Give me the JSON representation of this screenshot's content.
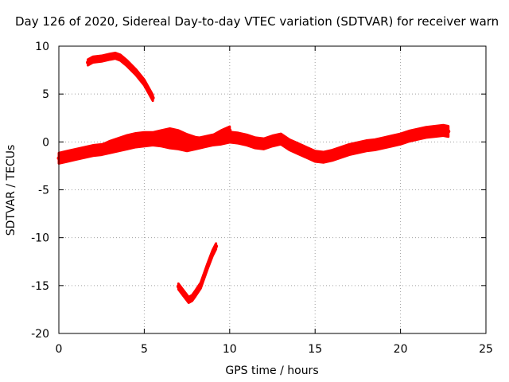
{
  "chart_data": {
    "type": "scatter",
    "title": "Day 126 of 2020, Sidereal Day-to-day VTEC variation (SDTVAR) for receiver warn",
    "xlabel": "GPS time / hours",
    "ylabel": "SDTVAR / TECUs",
    "xlim": [
      0,
      25
    ],
    "ylim": [
      -20,
      10
    ],
    "xticks": [
      0,
      5,
      10,
      15,
      20,
      25
    ],
    "yticks": [
      -20,
      -15,
      -10,
      -5,
      0,
      5,
      10
    ],
    "grid": true,
    "series_color": "#ff0000",
    "series": [
      {
        "name": "main band",
        "band_halfwidth": 0.55,
        "x": [
          0.0,
          0.5,
          1.0,
          1.5,
          2.0,
          2.5,
          3.0,
          3.5,
          4.0,
          4.5,
          5.0,
          5.5,
          6.0,
          6.5,
          7.0,
          7.5,
          8.0,
          8.5,
          9.0,
          9.5,
          10.0,
          10.5,
          11.0,
          11.5,
          12.0,
          12.5,
          13.0,
          13.5,
          14.0,
          14.5,
          15.0,
          15.5,
          16.0,
          16.5,
          17.0,
          17.5,
          18.0,
          18.5,
          19.0,
          19.5,
          20.0,
          20.5,
          21.0,
          21.5,
          22.0,
          22.5,
          22.8
        ],
        "y": [
          -1.7,
          -1.5,
          -1.3,
          -1.1,
          -0.9,
          -0.8,
          -0.6,
          -0.4,
          -0.2,
          0.0,
          0.1,
          0.2,
          0.1,
          -0.1,
          -0.2,
          -0.4,
          -0.2,
          0.0,
          0.2,
          0.3,
          0.5,
          0.4,
          0.2,
          -0.1,
          -0.2,
          0.1,
          0.3,
          -0.3,
          -0.7,
          -1.1,
          -1.5,
          -1.6,
          -1.4,
          -1.1,
          -0.8,
          -0.6,
          -0.4,
          -0.3,
          -0.1,
          0.1,
          0.3,
          0.6,
          0.8,
          1.0,
          1.1,
          1.2,
          1.1
        ]
      },
      {
        "name": "secondary band",
        "band_halfwidth": 0.4,
        "x": [
          2.5,
          3.0,
          3.5,
          4.0,
          4.5,
          5.0,
          5.5,
          6.0,
          6.5,
          7.0,
          7.5,
          8.0,
          8.5,
          9.0,
          9.5,
          10.0
        ],
        "y": [
          -0.7,
          -0.3,
          0.0,
          0.3,
          0.5,
          0.6,
          0.6,
          0.8,
          1.0,
          0.8,
          0.4,
          0.1,
          0.0,
          0.3,
          0.8,
          1.2
        ]
      },
      {
        "name": "upper arc",
        "band_halfwidth": 0.3,
        "x": [
          1.7,
          2.0,
          2.5,
          3.0,
          3.3,
          3.6,
          4.0,
          4.5,
          5.0,
          5.5
        ],
        "y": [
          8.3,
          8.6,
          8.7,
          8.9,
          9.0,
          8.8,
          8.2,
          7.3,
          6.2,
          4.6
        ]
      },
      {
        "name": "lower arc",
        "band_halfwidth": 0.3,
        "x": [
          7.0,
          7.3,
          7.6,
          7.8,
          8.0,
          8.3,
          8.7,
          9.0,
          9.2
        ],
        "y": [
          -15.1,
          -15.8,
          -16.5,
          -16.3,
          -15.8,
          -15.0,
          -13.0,
          -11.6,
          -10.9
        ]
      }
    ]
  }
}
